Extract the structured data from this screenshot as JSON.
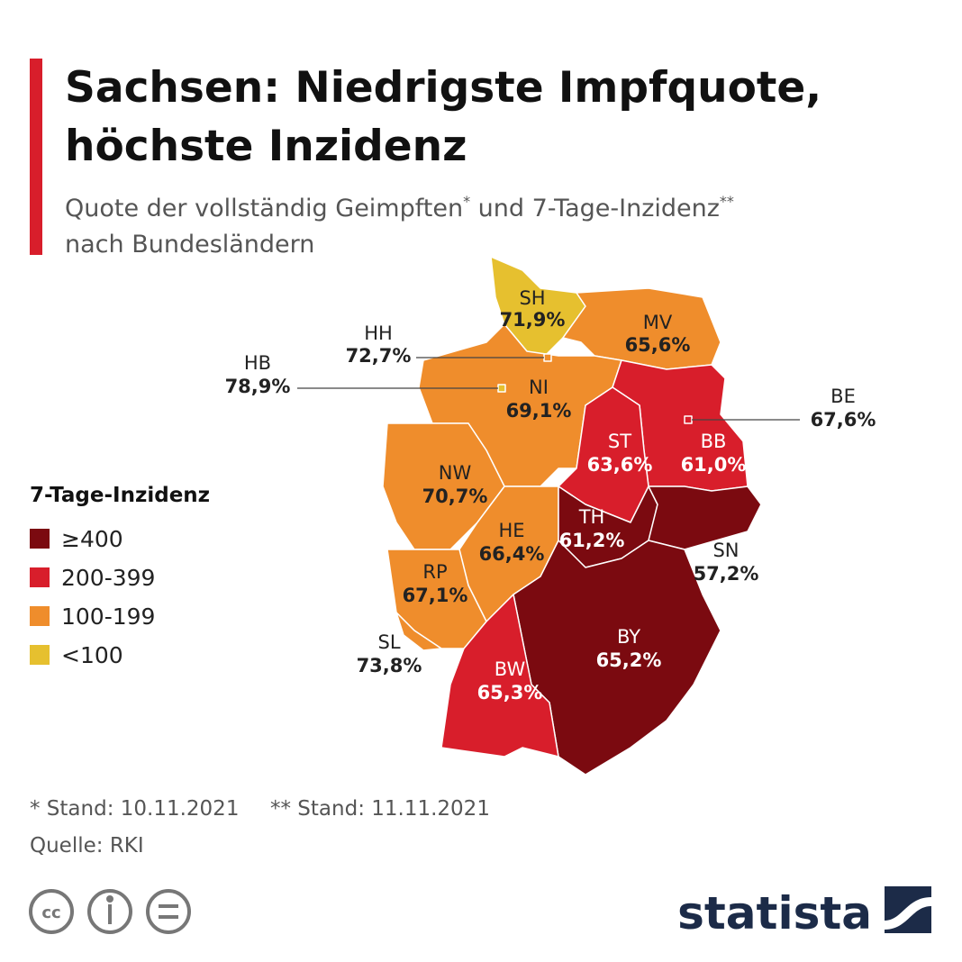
{
  "header": {
    "title_lines": [
      "Sachsen: Niedrigste Impfquote,",
      "höchste Inzidenz"
    ],
    "subtitle": {
      "line1": [
        "Quote der vollständig Geimpften",
        "*",
        " und 7-Tage-Inzidenz",
        "**"
      ],
      "line2": "nach Bundesländern"
    }
  },
  "legend": {
    "title": "7-Tage-Inzidenz",
    "items": [
      {
        "label": "≥400",
        "color": "#7b0a10"
      },
      {
        "label": "200-399",
        "color": "#d81e2b"
      },
      {
        "label": "100-199",
        "color": "#ef8d2c"
      },
      {
        "label": "<100",
        "color": "#e6c02f"
      }
    ]
  },
  "regions": [
    {
      "code": "SH",
      "value": "71,9%",
      "color": "#e6c02f"
    },
    {
      "code": "HH",
      "value": "72,7%",
      "color": "#ef8d2c"
    },
    {
      "code": "MV",
      "value": "65,6%",
      "color": "#ef8d2c"
    },
    {
      "code": "HB",
      "value": "78,9%",
      "color": "#e6c02f"
    },
    {
      "code": "NI",
      "value": "69,1%",
      "color": "#ef8d2c"
    },
    {
      "code": "BE",
      "value": "67,6%",
      "color": "#d81e2b"
    },
    {
      "code": "BB",
      "value": "61,0%",
      "color": "#d81e2b"
    },
    {
      "code": "ST",
      "value": "63,6%",
      "color": "#d81e2b"
    },
    {
      "code": "NW",
      "value": "70,7%",
      "color": "#ef8d2c"
    },
    {
      "code": "HE",
      "value": "66,4%",
      "color": "#ef8d2c"
    },
    {
      "code": "TH",
      "value": "61,2%",
      "color": "#7b0a10"
    },
    {
      "code": "SN",
      "value": "57,2%",
      "color": "#7b0a10"
    },
    {
      "code": "RP",
      "value": "67,1%",
      "color": "#ef8d2c"
    },
    {
      "code": "SL",
      "value": "73,8%",
      "color": "#ef8d2c"
    },
    {
      "code": "BY",
      "value": "65,2%",
      "color": "#7b0a10"
    },
    {
      "code": "BW",
      "value": "65,3%",
      "color": "#d81e2b"
    }
  ],
  "footer": {
    "notes": [
      "* Stand: 10.11.2021",
      "** Stand: 11.11.2021"
    ],
    "source": "Quelle: RKI",
    "brand": "statista"
  }
}
